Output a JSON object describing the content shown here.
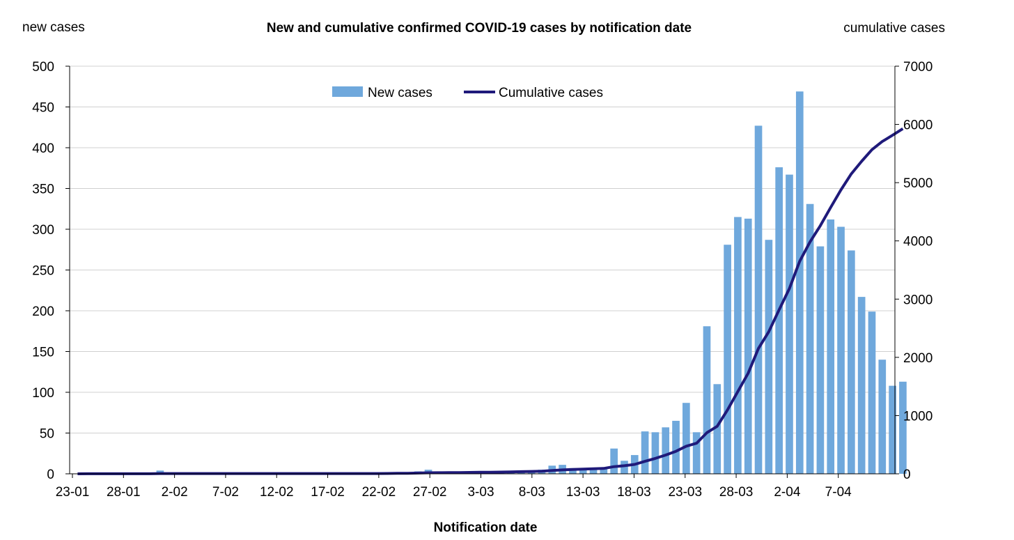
{
  "chart_data": {
    "type": "bar+line",
    "title": "New and cumulative confirmed COVID-19 cases by notification date",
    "left_axis_label": "new cases",
    "right_axis_label": "cumulative cases",
    "xlabel": "Notification date",
    "x_tick_labels": [
      "23-01",
      "28-01",
      "2-02",
      "7-02",
      "12-02",
      "17-02",
      "22-02",
      "27-02",
      "3-03",
      "8-03",
      "13-03",
      "18-03",
      "23-03",
      "28-03",
      "2-04",
      "7-04"
    ],
    "y_left_ticks": [
      "0",
      "50",
      "100",
      "150",
      "200",
      "250",
      "300",
      "350",
      "400",
      "450",
      "500"
    ],
    "y_right_ticks": [
      "0",
      "1000",
      "2000",
      "3000",
      "4000",
      "5000",
      "6000",
      "7000"
    ],
    "ylim_left": [
      0,
      500
    ],
    "ylim_right": [
      0,
      7000
    ],
    "legend_position": "top-center",
    "grid": "horizontal",
    "colors": {
      "bars": "#6fa8dc",
      "line": "#1f1a7a",
      "grid": "#d0d0d0",
      "axis": "#000000"
    },
    "series": [
      {
        "name": "New cases",
        "type": "bar",
        "axis": "left",
        "values": [
          0,
          1,
          0,
          0,
          0,
          0,
          0,
          0,
          4,
          0,
          0,
          0,
          0,
          0,
          0,
          0,
          0,
          0,
          0,
          0,
          0,
          0,
          0,
          0,
          0,
          0,
          0,
          0,
          0,
          0,
          1,
          2,
          2,
          3,
          5,
          1,
          1,
          2,
          2,
          2,
          2,
          2,
          3,
          4,
          4,
          5,
          10,
          11,
          7,
          6,
          6,
          6,
          31,
          16,
          23,
          52,
          51,
          57,
          65,
          87,
          51,
          181,
          110,
          281,
          315,
          313,
          427,
          287,
          376,
          367,
          469,
          331,
          279,
          312,
          303,
          274,
          217,
          199,
          140,
          108,
          113
        ]
      },
      {
        "name": "Cumulative cases",
        "type": "line",
        "axis": "right",
        "values": [
          0,
          1,
          1,
          1,
          1,
          1,
          1,
          1,
          5,
          5,
          5,
          5,
          5,
          5,
          5,
          5,
          5,
          5,
          5,
          5,
          5,
          5,
          5,
          5,
          5,
          5,
          5,
          5,
          5,
          5,
          6,
          8,
          10,
          13,
          18,
          19,
          20,
          22,
          24,
          26,
          28,
          30,
          33,
          37,
          41,
          46,
          56,
          67,
          74,
          80,
          86,
          92,
          123,
          139,
          162,
          214,
          265,
          322,
          387,
          474,
          525,
          706,
          816,
          1097,
          1412,
          1725,
          2152,
          2439,
          2815,
          3182,
          3651,
          3982,
          4261,
          4573,
          4876,
          5150,
          5367,
          5566,
          5706,
          5814,
          5927
        ]
      }
    ]
  }
}
